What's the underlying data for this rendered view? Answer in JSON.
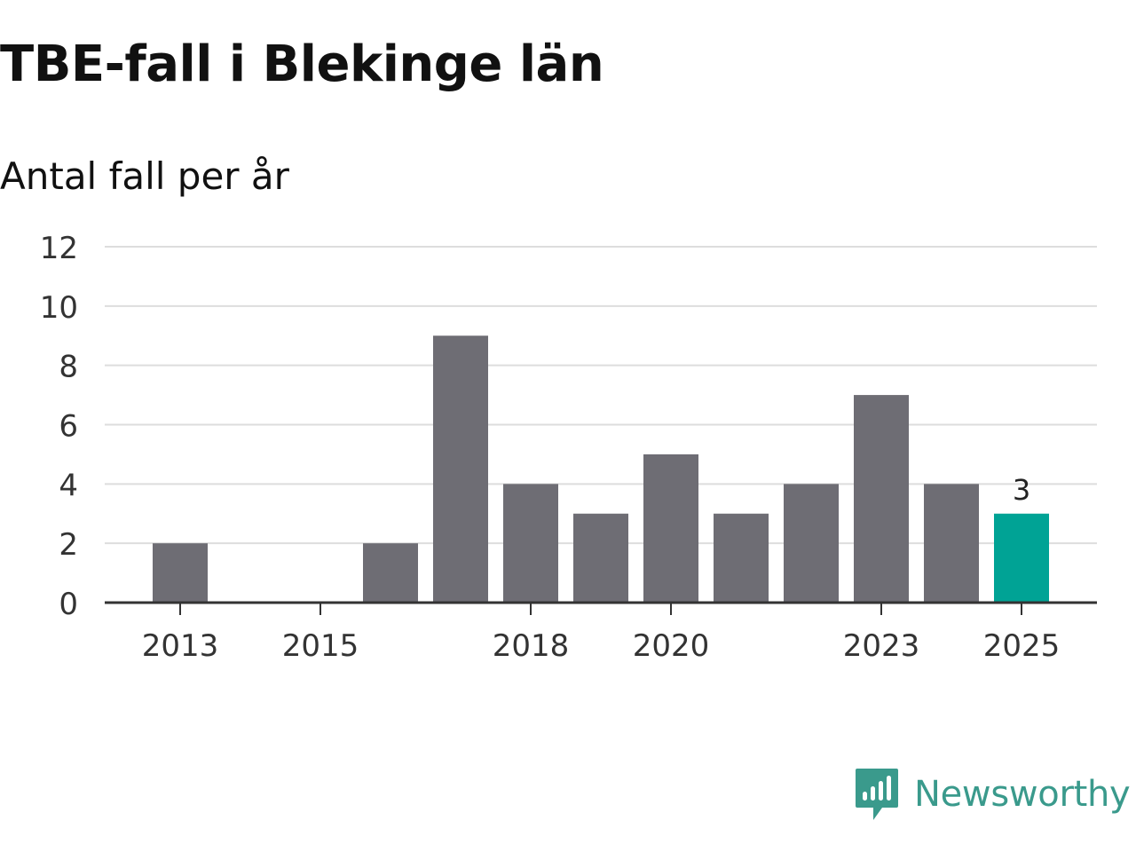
{
  "title": "TBE-fall i Blekinge län",
  "subtitle": "Antal fall per år",
  "brand": {
    "name": "Newsworthy",
    "icon": "newsworthy-logo-icon",
    "color": "#3a9a8c"
  },
  "chart_data": {
    "type": "bar",
    "title": "TBE-fall i Blekinge län",
    "subtitle": "Antal fall per år",
    "xlabel": "",
    "ylabel": "",
    "categories": [
      "2013",
      "2014",
      "2015",
      "2016",
      "2017",
      "2018",
      "2019",
      "2020",
      "2021",
      "2022",
      "2023",
      "2024",
      "2025"
    ],
    "values": [
      2,
      0,
      0,
      2,
      9,
      4,
      3,
      5,
      3,
      4,
      7,
      4,
      3
    ],
    "x_tick_labels": [
      "2013",
      "2015",
      "2018",
      "2020",
      "2023",
      "2025"
    ],
    "y_ticks": [
      "0",
      "2",
      "4",
      "6",
      "8",
      "10",
      "12"
    ],
    "ylim": [
      0,
      12
    ],
    "grid": true,
    "bar_color": "#6e6d74",
    "highlight_index": 12,
    "highlight_color": "#00a395",
    "data_labels": [
      {
        "index": 12,
        "text": "3"
      }
    ]
  }
}
